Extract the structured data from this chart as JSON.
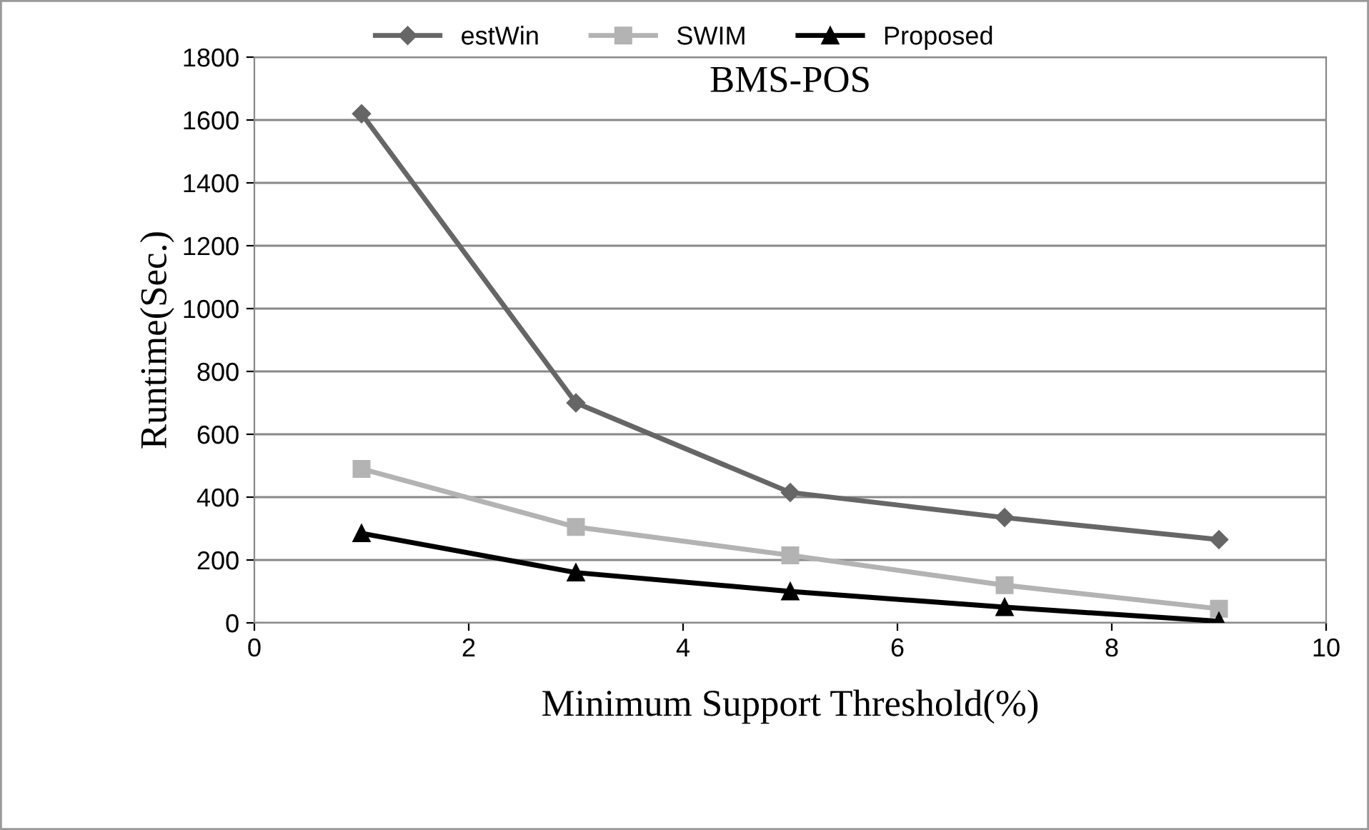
{
  "chart_data": {
    "type": "line",
    "title": "BMS-POS",
    "xlabel": "Minimum Support Threshold(%)",
    "ylabel": "Runtime(Sec.)",
    "x": [
      1,
      3,
      5,
      7,
      9
    ],
    "series": [
      {
        "name": "estWin",
        "color": "#666666",
        "marker": "diamond",
        "values": [
          1620,
          700,
          415,
          335,
          265
        ]
      },
      {
        "name": "SWIM",
        "color": "#b3b3b3",
        "marker": "square",
        "values": [
          490,
          305,
          215,
          120,
          45
        ]
      },
      {
        "name": "Proposed",
        "color": "#000000",
        "marker": "triangle",
        "values": [
          285,
          160,
          100,
          50,
          5
        ]
      }
    ],
    "xlim": [
      0,
      10
    ],
    "xticks": [
      0,
      2,
      4,
      6,
      8,
      10
    ],
    "ylim": [
      0,
      1800
    ],
    "yticks": [
      0,
      200,
      400,
      600,
      800,
      1000,
      1200,
      1400,
      1600,
      1800
    ],
    "grid": "y",
    "legend": "top",
    "line_style": "solid"
  }
}
